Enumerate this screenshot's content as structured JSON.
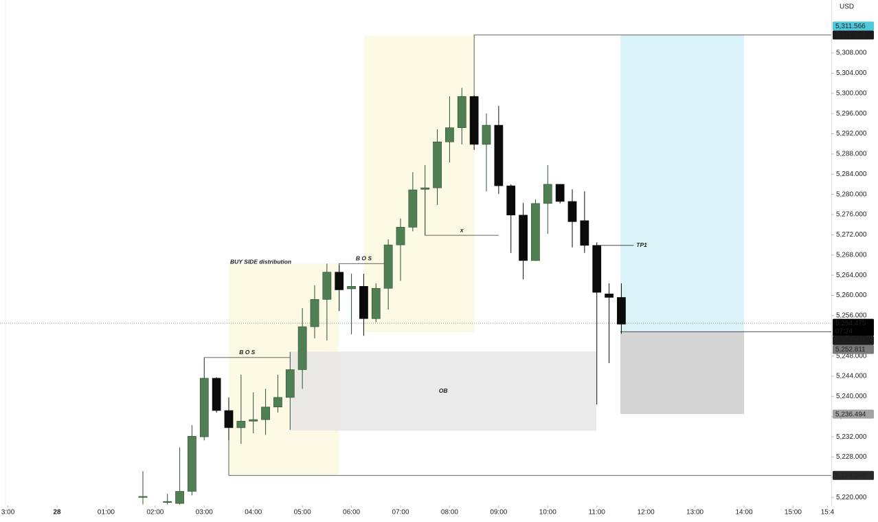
{
  "chart_data": {
    "type": "candlestick",
    "currency": "USD",
    "x": [
      1.75,
      2.25,
      2.5,
      2.75,
      3.0,
      3.25,
      3.5,
      3.75,
      4.0,
      4.25,
      4.5,
      4.75,
      5.0,
      5.25,
      5.5,
      5.75,
      6.0,
      6.25,
      6.5,
      6.75,
      7.0,
      7.25,
      7.5,
      7.75,
      8.0,
      8.25,
      8.5,
      8.75,
      9.0,
      9.25,
      9.5,
      9.75,
      10.0,
      10.25,
      10.5,
      10.75,
      11.0,
      11.25,
      11.5
    ],
    "open": [
      5220.0,
      5219.0,
      5218.8,
      5221.2,
      5232.0,
      5243.6,
      5237.2,
      5233.8,
      5235.1,
      5235.4,
      5237.9,
      5239.8,
      5245.3,
      5253.8,
      5259.2,
      5264.6,
      5261.3,
      5261.8,
      5255.4,
      5261.4,
      5270.0,
      5273.5,
      5281.0,
      5281.3,
      5290.4,
      5293.2,
      5299.4,
      5289.9,
      5293.7,
      5281.7,
      5275.9,
      5266.9,
      5278.2,
      5282.0,
      5278.6,
      5274.8,
      5269.9,
      5260.3,
      5259.6
    ],
    "high": [
      5225.2,
      5220.7,
      5229.9,
      5234.3,
      5247.7,
      5243.8,
      5239.8,
      5244.3,
      5240.8,
      5241.5,
      5244.3,
      5248.8,
      5257.5,
      5262.0,
      5266.3,
      5266.0,
      5264.3,
      5264.3,
      5262.4,
      5271.1,
      5275.2,
      5284.4,
      5285.8,
      5292.9,
      5299.4,
      5301.1,
      5299.6,
      5296.0,
      5297.5,
      5282.0,
      5278.3,
      5279.0,
      5285.8,
      5282.0,
      5281.0,
      5280.6,
      5270.5,
      5262.4,
      5262.4
    ],
    "low": [
      5218.6,
      5218.6,
      5218.6,
      5220.4,
      5231.3,
      5236.8,
      5231.3,
      5230.6,
      5232.7,
      5232.4,
      5236.8,
      5233.4,
      5241.5,
      5251.5,
      5251.1,
      5256.9,
      5252.3,
      5252.0,
      5254.7,
      5257.2,
      5262.9,
      5272.7,
      5271.9,
      5277.9,
      5286.3,
      5289.9,
      5288.8,
      5280.6,
      5280.1,
      5268.4,
      5263.2,
      5266.8,
      5272.2,
      5278.2,
      5269.5,
      5268.4,
      5238.4,
      5246.6,
      5252.4
    ],
    "close": [
      5220.2,
      5219.2,
      5221.2,
      5232.1,
      5243.6,
      5237.2,
      5233.8,
      5235.1,
      5235.4,
      5237.9,
      5239.8,
      5245.3,
      5253.8,
      5259.2,
      5264.6,
      5261.1,
      5261.8,
      5255.4,
      5261.4,
      5270.0,
      5273.5,
      5280.9,
      5281.3,
      5290.4,
      5293.2,
      5299.4,
      5289.9,
      5293.7,
      5281.7,
      5275.9,
      5266.9,
      5278.2,
      5282.0,
      5278.6,
      5274.6,
      5269.9,
      5260.6,
      5259.6,
      5254.3
    ],
    "up_color": "#4f7f53",
    "up_border": "#2e4d31",
    "down_color": "#0a0a0a",
    "xlim": [
      -1.162,
      15.778
    ],
    "ylim": [
      5218.4,
      5318.49
    ],
    "xticks": [
      {
        "value": -1,
        "label": "3:00"
      },
      {
        "value": 0,
        "label": "28"
      },
      {
        "value": 1,
        "label": "01:00"
      },
      {
        "value": 2,
        "label": "02:00"
      },
      {
        "value": 3,
        "label": "03:00"
      },
      {
        "value": 4,
        "label": "04:00"
      },
      {
        "value": 5,
        "label": "05:00"
      },
      {
        "value": 6,
        "label": "06:00"
      },
      {
        "value": 7,
        "label": "07:00"
      },
      {
        "value": 8,
        "label": "08:00"
      },
      {
        "value": 9,
        "label": "09:00"
      },
      {
        "value": 10,
        "label": "10:00"
      },
      {
        "value": 11,
        "label": "11:00"
      },
      {
        "value": 12,
        "label": "12:00"
      },
      {
        "value": 13,
        "label": "13:00"
      },
      {
        "value": 14,
        "label": "14:00"
      },
      {
        "value": 15,
        "label": "15:00"
      },
      {
        "value": 15.7,
        "label": "15:4"
      }
    ],
    "yticks": [
      {
        "value": 5220,
        "label": "5,220.000"
      },
      {
        "value": 5224,
        "label": "5,224.000"
      },
      {
        "value": 5228,
        "label": "5,228.000"
      },
      {
        "value": 5232,
        "label": "5,232.000"
      },
      {
        "value": 5236,
        "label": "5,236.000"
      },
      {
        "value": 5240,
        "label": "5,240.000"
      },
      {
        "value": 5244,
        "label": "5,244.000"
      },
      {
        "value": 5248,
        "label": "5,248.000"
      },
      {
        "value": 5252,
        "label": "5,252.000"
      },
      {
        "value": 5256,
        "label": "5,256.000"
      },
      {
        "value": 5260,
        "label": "5,260.000"
      },
      {
        "value": 5264,
        "label": "5,264.000"
      },
      {
        "value": 5268,
        "label": "5,268.000"
      },
      {
        "value": 5272,
        "label": "5,272.000"
      },
      {
        "value": 5276,
        "label": "5,276.000"
      },
      {
        "value": 5280,
        "label": "5,280.000"
      },
      {
        "value": 5284,
        "label": "5,284.000"
      },
      {
        "value": 5288,
        "label": "5,288.000"
      },
      {
        "value": 5292,
        "label": "5,292.000"
      },
      {
        "value": 5296,
        "label": "5,296.000"
      },
      {
        "value": 5300,
        "label": "5,300.000"
      },
      {
        "value": 5304,
        "label": "5,304.000"
      },
      {
        "value": 5308,
        "label": "5,308.000"
      }
    ],
    "zones": [
      {
        "x": [
          3.5,
          5.74
        ],
        "y": [
          5224.4,
          5266.3
        ],
        "color": "#fcf8e1",
        "label": "BUY SIDE distribution",
        "label_position": "top-left"
      },
      {
        "x": [
          6.26,
          8.5
        ],
        "y": [
          5252.7,
          5311.4
        ],
        "color": "#fcf8e1"
      },
      {
        "x": [
          4.75,
          10.99
        ],
        "y": [
          5233.2,
          5248.9
        ],
        "color": "#e6e6e6",
        "label": "OB",
        "label_position": "center"
      },
      {
        "x": [
          11.48,
          14.0
        ],
        "y": [
          5252.811,
          5311.566
        ],
        "color": "#d3f1f7"
      },
      {
        "x": [
          11.48,
          14.0
        ],
        "y": [
          5236.494,
          5252.811
        ],
        "color": "#cccccc"
      }
    ],
    "lines": [
      {
        "x": [
          3.0,
          3.0,
          4.75
        ],
        "y": [
          5243.6,
          5247.7,
          5247.7
        ],
        "label": "B O S",
        "label_position": "above"
      },
      {
        "x": [
          5.75,
          5.75,
          6.75
        ],
        "y": [
          5264.6,
          5266.3,
          5266.3
        ],
        "label": "B O S",
        "label_position": "above"
      },
      {
        "x": [
          7.5,
          7.5,
          9.0
        ],
        "y": [
          5281.0,
          5271.9,
          5271.9
        ],
        "label": "x",
        "label_position": "above"
      },
      {
        "x": [
          11.0,
          11.75
        ],
        "y": [
          5269.9,
          5269.9
        ],
        "label": "TP1",
        "label_position": "right"
      },
      {
        "x": [
          8.5,
          8.5,
          15.778
        ],
        "y": [
          5299.4,
          5311.563,
          5311.563
        ]
      },
      {
        "x": [
          3.5,
          3.5,
          15.778
        ],
        "y": [
          5239.8,
          5224.358,
          5224.358
        ]
      },
      {
        "x": [
          11.48,
          15.778
        ],
        "y": [
          5252.811,
          5252.811
        ]
      }
    ],
    "price_labels": [
      {
        "value": 5311.563,
        "label": "5,311.563",
        "color": "#1c1c1c",
        "text_color": "#ffffff"
      },
      {
        "value": 5311.566,
        "label": "5,311.566",
        "color": "#4fc8da",
        "text_color": "#10343a"
      },
      {
        "value": 5254.475,
        "label": "5,254.475",
        "countdown": "07:24",
        "color": "#000000",
        "text_color": "#ffffff",
        "price_line": "dotted"
      },
      {
        "value": 5252.811,
        "label": "5,252.811",
        "color": "#1c1c1c",
        "text_color": "#ffffff"
      },
      {
        "value": 5252.811,
        "label": "5,252.811",
        "color": "#7a7a7a",
        "text_color": "#ffffff"
      },
      {
        "value": 5236.494,
        "label": "5,236.494",
        "color": "#a3a3a3",
        "text_color": "#222222"
      },
      {
        "value": 5224.358,
        "label": "5,224.358",
        "color": "#2a2a2a",
        "text_color": "#ffffff"
      }
    ]
  }
}
